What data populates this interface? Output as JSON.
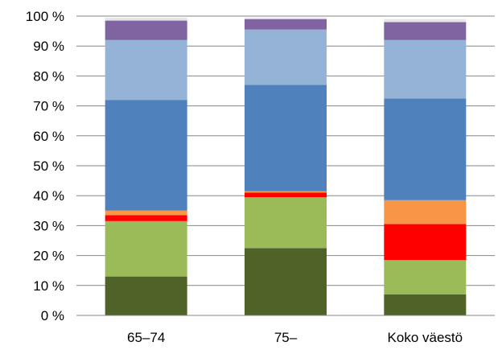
{
  "chart_data": {
    "type": "bar",
    "stacked": true,
    "categories": [
      "65–74",
      "75–",
      "Koko väestö"
    ],
    "y_ticks": [
      "0 %",
      "10 %",
      "20 %",
      "30 %",
      "40 %",
      "50 %",
      "60 %",
      "70 %",
      "80 %",
      "90 %",
      "100 %"
    ],
    "ylim": [
      0,
      100
    ],
    "grid": true,
    "legend": "none",
    "series": [
      {
        "color": "#4F6228",
        "values": [
          13,
          22.5,
          7
        ]
      },
      {
        "color": "#9BBB59",
        "values": [
          18.5,
          17,
          11.5
        ]
      },
      {
        "color": "#FF0000",
        "values": [
          2,
          1.5,
          12
        ]
      },
      {
        "color": "#F79646",
        "values": [
          1.5,
          0.5,
          8
        ]
      },
      {
        "color": "#4F81BD",
        "values": [
          37,
          35.5,
          34
        ]
      },
      {
        "color": "#95B3D7",
        "values": [
          20,
          18.5,
          19.5
        ]
      },
      {
        "color": "#8064A2",
        "values": [
          6.5,
          3.5,
          6
        ]
      },
      {
        "color": "#E6E6E6",
        "values": [
          1,
          0.5,
          1
        ]
      }
    ]
  }
}
